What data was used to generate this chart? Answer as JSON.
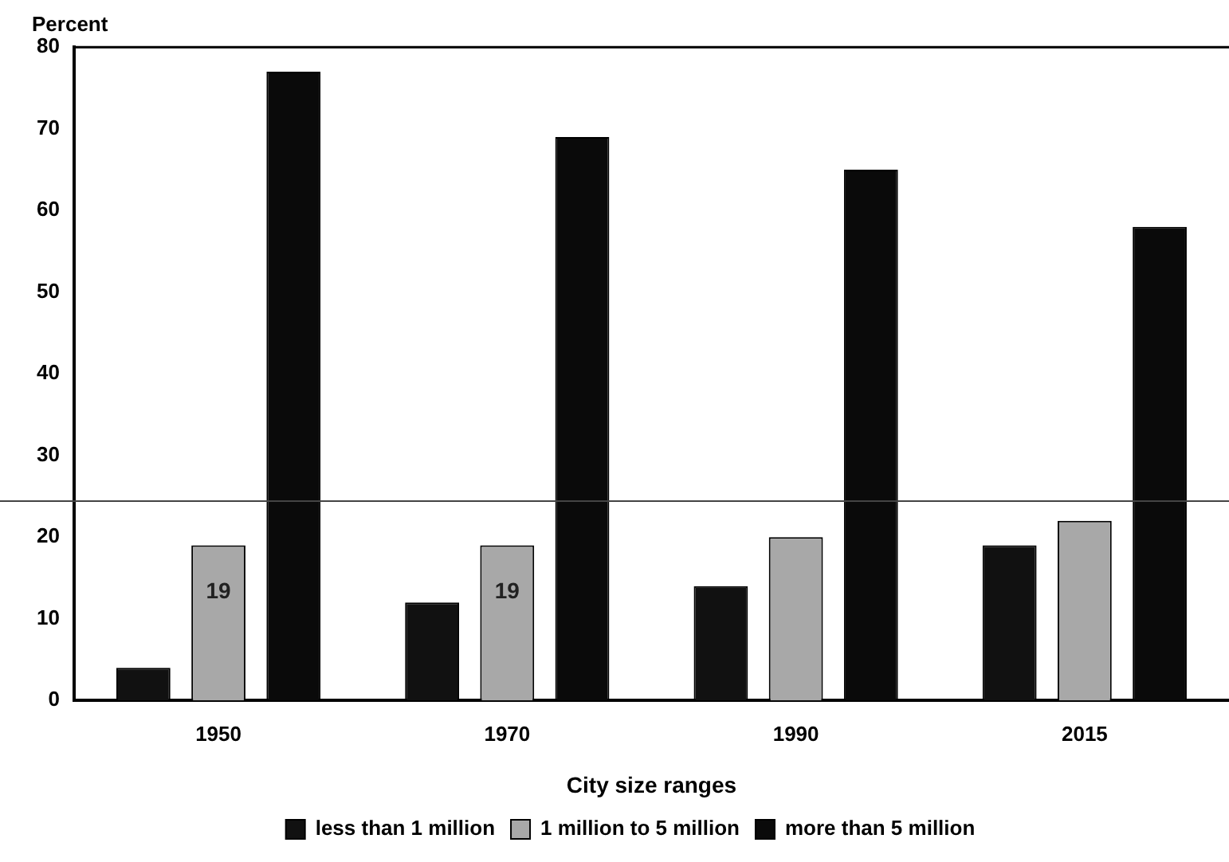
{
  "chart_data": {
    "type": "bar",
    "ylabel": "Percent",
    "xlabel": "City size ranges",
    "categories": [
      "1950",
      "1970",
      "1990",
      "2015"
    ],
    "series": [
      {
        "name": "less than 1 million",
        "color": "#111111",
        "values": [
          4,
          12,
          14,
          19
        ]
      },
      {
        "name": "1 million to 5 million",
        "color": "#a8a8a8",
        "values": [
          19,
          19,
          20,
          22
        ],
        "value_labels": [
          "19",
          "19",
          null,
          null
        ]
      },
      {
        "name": "more than 5 million",
        "color": "#0a0a0a",
        "values": [
          77,
          69,
          65,
          58
        ]
      }
    ],
    "ylim": [
      0,
      80
    ],
    "yticks": [
      0,
      10,
      20,
      30,
      40,
      50,
      60,
      70,
      80
    ],
    "ref_lines": [
      {
        "axis": "y",
        "value": 24.4,
        "color": "#444444"
      }
    ],
    "grid": false,
    "legend": "bottom"
  }
}
